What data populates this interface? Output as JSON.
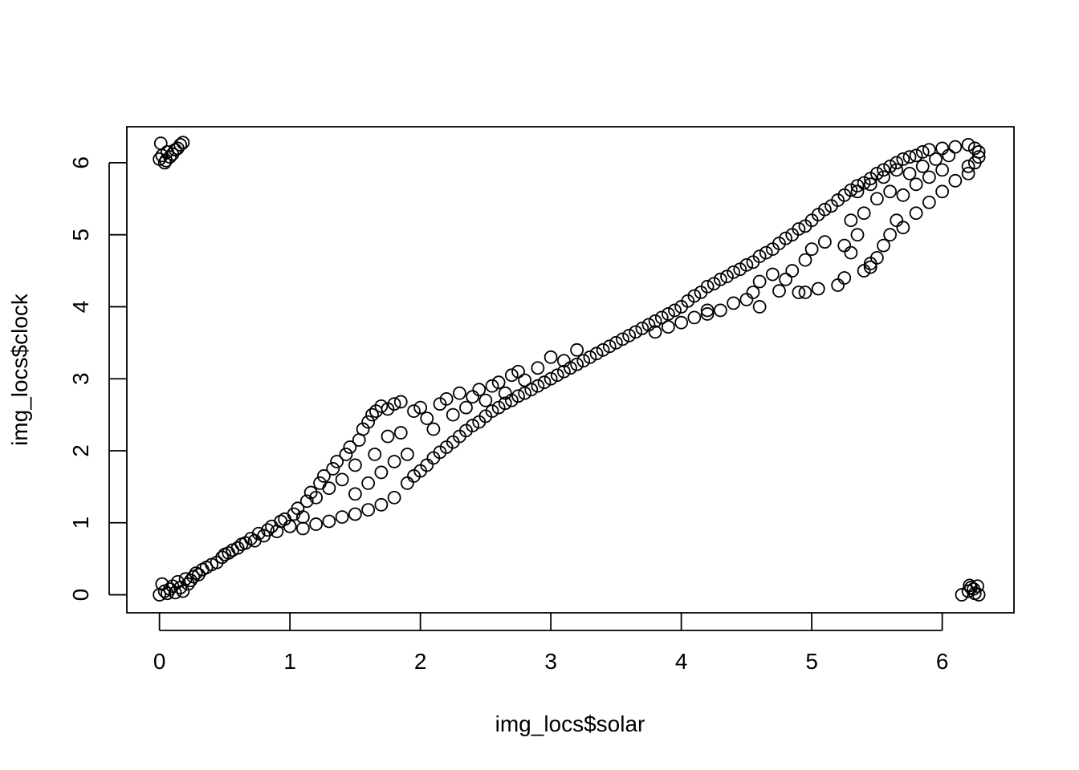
{
  "chart_data": {
    "type": "scatter",
    "title": "",
    "xlabel": "img_locs$solar",
    "ylabel": "img_locs$clock",
    "xlim": [
      -0.25,
      6.55
    ],
    "ylim": [
      -0.25,
      6.5
    ],
    "x_ticks": [
      0,
      1,
      2,
      3,
      4,
      5,
      6
    ],
    "y_ticks": [
      0,
      1,
      2,
      3,
      4,
      5,
      6
    ],
    "x_tick_labels": [
      "0",
      "1",
      "2",
      "3",
      "4",
      "5",
      "6"
    ],
    "y_tick_labels": [
      "0",
      "1",
      "2",
      "3",
      "4",
      "5",
      "6"
    ],
    "marker": "open-circle",
    "grid": false,
    "legend": "none",
    "series": [
      {
        "points": [
          [
            0.0,
            0.0
          ],
          [
            0.02,
            0.15
          ],
          [
            0.04,
            0.05
          ],
          [
            0.06,
            0.02
          ],
          [
            0.08,
            0.08
          ],
          [
            0.1,
            0.12
          ],
          [
            0.12,
            0.03
          ],
          [
            0.14,
            0.18
          ],
          [
            0.16,
            0.1
          ],
          [
            0.18,
            0.05
          ],
          [
            0.2,
            0.22
          ],
          [
            0.22,
            0.15
          ],
          [
            0.24,
            0.2
          ],
          [
            0.26,
            0.25
          ],
          [
            0.28,
            0.3
          ],
          [
            0.3,
            0.28
          ],
          [
            0.33,
            0.35
          ],
          [
            0.36,
            0.38
          ],
          [
            0.4,
            0.42
          ],
          [
            0.44,
            0.45
          ],
          [
            0.48,
            0.52
          ],
          [
            0.5,
            0.56
          ],
          [
            0.53,
            0.58
          ],
          [
            0.56,
            0.62
          ],
          [
            0.6,
            0.65
          ],
          [
            0.63,
            0.7
          ],
          [
            0.66,
            0.72
          ],
          [
            0.7,
            0.78
          ],
          [
            0.73,
            0.75
          ],
          [
            0.76,
            0.85
          ],
          [
            0.8,
            0.82
          ],
          [
            0.83,
            0.9
          ],
          [
            0.86,
            0.95
          ],
          [
            0.9,
            0.88
          ],
          [
            0.93,
            1.02
          ],
          [
            0.96,
            1.05
          ],
          [
            1.0,
            0.95
          ],
          [
            1.03,
            1.12
          ],
          [
            1.06,
            1.2
          ],
          [
            1.1,
            1.08
          ],
          [
            1.13,
            1.3
          ],
          [
            1.16,
            1.42
          ],
          [
            1.2,
            1.35
          ],
          [
            1.23,
            1.55
          ],
          [
            1.26,
            1.65
          ],
          [
            1.3,
            1.48
          ],
          [
            1.33,
            1.75
          ],
          [
            1.36,
            1.85
          ],
          [
            1.4,
            1.6
          ],
          [
            1.43,
            1.95
          ],
          [
            1.46,
            2.05
          ],
          [
            1.5,
            1.8
          ],
          [
            1.53,
            2.15
          ],
          [
            1.56,
            2.3
          ],
          [
            1.6,
            2.4
          ],
          [
            1.63,
            2.5
          ],
          [
            1.66,
            2.55
          ],
          [
            1.7,
            2.62
          ],
          [
            1.75,
            2.58
          ],
          [
            1.8,
            2.65
          ],
          [
            1.85,
            2.68
          ],
          [
            1.1,
            0.92
          ],
          [
            1.2,
            0.98
          ],
          [
            1.3,
            1.02
          ],
          [
            1.4,
            1.08
          ],
          [
            1.5,
            1.12
          ],
          [
            1.6,
            1.18
          ],
          [
            1.7,
            1.25
          ],
          [
            1.8,
            1.35
          ],
          [
            1.5,
            1.4
          ],
          [
            1.6,
            1.55
          ],
          [
            1.7,
            1.7
          ],
          [
            1.8,
            1.85
          ],
          [
            1.9,
            1.95
          ],
          [
            1.65,
            1.95
          ],
          [
            1.75,
            2.2
          ],
          [
            1.85,
            2.25
          ],
          [
            1.9,
            1.55
          ],
          [
            1.95,
            1.65
          ],
          [
            2.0,
            1.72
          ],
          [
            2.05,
            1.8
          ],
          [
            2.1,
            1.9
          ],
          [
            2.15,
            1.98
          ],
          [
            2.2,
            2.05
          ],
          [
            2.25,
            2.12
          ],
          [
            2.3,
            2.2
          ],
          [
            2.35,
            2.28
          ],
          [
            2.4,
            2.35
          ],
          [
            2.45,
            2.4
          ],
          [
            2.5,
            2.48
          ],
          [
            2.55,
            2.55
          ],
          [
            2.6,
            2.6
          ],
          [
            2.65,
            2.66
          ],
          [
            2.7,
            2.7
          ],
          [
            2.75,
            2.76
          ],
          [
            2.8,
            2.8
          ],
          [
            2.85,
            2.85
          ],
          [
            2.9,
            2.9
          ],
          [
            2.95,
            2.95
          ],
          [
            3.0,
            3.0
          ],
          [
            1.95,
            2.55
          ],
          [
            2.0,
            2.6
          ],
          [
            2.05,
            2.45
          ],
          [
            2.1,
            2.3
          ],
          [
            2.15,
            2.65
          ],
          [
            2.2,
            2.72
          ],
          [
            2.25,
            2.5
          ],
          [
            2.3,
            2.8
          ],
          [
            2.35,
            2.6
          ],
          [
            2.4,
            2.75
          ],
          [
            2.45,
            2.85
          ],
          [
            2.5,
            2.7
          ],
          [
            2.55,
            2.9
          ],
          [
            2.6,
            2.95
          ],
          [
            2.65,
            2.8
          ],
          [
            2.7,
            3.05
          ],
          [
            2.75,
            3.1
          ],
          [
            2.8,
            2.98
          ],
          [
            2.9,
            3.15
          ],
          [
            3.0,
            3.3
          ],
          [
            3.1,
            3.25
          ],
          [
            3.2,
            3.4
          ],
          [
            3.05,
            3.05
          ],
          [
            3.1,
            3.1
          ],
          [
            3.15,
            3.15
          ],
          [
            3.2,
            3.2
          ],
          [
            3.25,
            3.25
          ],
          [
            3.3,
            3.3
          ],
          [
            3.35,
            3.35
          ],
          [
            3.4,
            3.4
          ],
          [
            3.45,
            3.45
          ],
          [
            3.5,
            3.5
          ],
          [
            3.55,
            3.55
          ],
          [
            3.6,
            3.6
          ],
          [
            3.65,
            3.65
          ],
          [
            3.7,
            3.7
          ],
          [
            3.75,
            3.75
          ],
          [
            3.8,
            3.8
          ],
          [
            3.85,
            3.85
          ],
          [
            3.9,
            3.9
          ],
          [
            3.95,
            3.95
          ],
          [
            4.0,
            4.0
          ],
          [
            3.8,
            3.65
          ],
          [
            3.9,
            3.72
          ],
          [
            4.0,
            3.78
          ],
          [
            4.1,
            3.85
          ],
          [
            4.2,
            3.9
          ],
          [
            4.3,
            3.95
          ],
          [
            4.05,
            4.08
          ],
          [
            4.1,
            4.15
          ],
          [
            4.15,
            4.2
          ],
          [
            4.2,
            4.28
          ],
          [
            4.25,
            4.32
          ],
          [
            4.3,
            4.38
          ],
          [
            4.35,
            4.42
          ],
          [
            4.4,
            4.48
          ],
          [
            4.45,
            4.52
          ],
          [
            4.5,
            4.58
          ],
          [
            4.55,
            4.62
          ],
          [
            4.6,
            4.7
          ],
          [
            4.65,
            4.75
          ],
          [
            4.7,
            4.8
          ],
          [
            4.75,
            4.88
          ],
          [
            4.8,
            4.95
          ],
          [
            4.85,
            5.0
          ],
          [
            4.9,
            5.08
          ],
          [
            4.95,
            5.12
          ],
          [
            5.0,
            5.2
          ],
          [
            5.05,
            5.28
          ],
          [
            5.1,
            5.35
          ],
          [
            5.15,
            5.4
          ],
          [
            5.2,
            5.48
          ],
          [
            5.25,
            5.55
          ],
          [
            5.3,
            5.62
          ],
          [
            5.35,
            5.68
          ],
          [
            5.4,
            5.72
          ],
          [
            5.45,
            5.78
          ],
          [
            5.5,
            5.85
          ],
          [
            5.55,
            5.9
          ],
          [
            5.6,
            5.95
          ],
          [
            5.65,
            6.0
          ],
          [
            5.7,
            6.05
          ],
          [
            5.75,
            6.08
          ],
          [
            5.8,
            6.1
          ],
          [
            5.85,
            6.15
          ],
          [
            5.9,
            6.18
          ],
          [
            6.0,
            6.2
          ],
          [
            6.1,
            6.22
          ],
          [
            6.2,
            6.25
          ],
          [
            6.25,
            6.2
          ],
          [
            6.28,
            6.15
          ],
          [
            6.28,
            6.08
          ],
          [
            6.25,
            6.0
          ],
          [
            6.2,
            5.95
          ],
          [
            4.4,
            4.05
          ],
          [
            4.5,
            4.1
          ],
          [
            4.55,
            4.2
          ],
          [
            4.6,
            4.35
          ],
          [
            4.7,
            4.45
          ],
          [
            4.75,
            4.22
          ],
          [
            4.8,
            4.38
          ],
          [
            4.85,
            4.5
          ],
          [
            4.9,
            4.2
          ],
          [
            4.95,
            4.65
          ],
          [
            5.0,
            4.8
          ],
          [
            5.05,
            4.25
          ],
          [
            5.1,
            4.9
          ],
          [
            5.2,
            4.3
          ],
          [
            5.25,
            4.85
          ],
          [
            5.3,
            4.75
          ],
          [
            5.35,
            5.0
          ],
          [
            5.4,
            4.5
          ],
          [
            5.45,
            4.6
          ],
          [
            5.5,
            4.68
          ],
          [
            5.55,
            4.85
          ],
          [
            5.6,
            5.0
          ],
          [
            5.65,
            5.2
          ],
          [
            5.7,
            5.1
          ],
          [
            5.8,
            5.3
          ],
          [
            5.9,
            5.45
          ],
          [
            6.0,
            5.6
          ],
          [
            6.1,
            5.75
          ],
          [
            6.2,
            5.85
          ],
          [
            5.3,
            5.2
          ],
          [
            5.4,
            5.3
          ],
          [
            5.5,
            5.5
          ],
          [
            5.6,
            5.6
          ],
          [
            5.7,
            5.55
          ],
          [
            5.8,
            5.7
          ],
          [
            5.9,
            5.8
          ],
          [
            6.0,
            5.9
          ],
          [
            5.35,
            5.6
          ],
          [
            5.45,
            5.7
          ],
          [
            5.55,
            5.8
          ],
          [
            5.65,
            5.9
          ],
          [
            5.75,
            5.85
          ],
          [
            5.85,
            5.95
          ],
          [
            5.95,
            6.05
          ],
          [
            6.05,
            6.1
          ],
          [
            4.6,
            4.0
          ],
          [
            4.2,
            3.95
          ],
          [
            4.95,
            4.2
          ],
          [
            5.25,
            4.4
          ],
          [
            5.45,
            4.55
          ],
          [
            0.0,
            6.05
          ],
          [
            0.02,
            6.1
          ],
          [
            0.04,
            6.0
          ],
          [
            0.06,
            6.15
          ],
          [
            0.08,
            6.08
          ],
          [
            0.1,
            6.12
          ],
          [
            0.12,
            6.18
          ],
          [
            0.14,
            6.2
          ],
          [
            0.16,
            6.25
          ],
          [
            0.18,
            6.28
          ],
          [
            0.01,
            6.27
          ],
          [
            0.05,
            6.03
          ],
          [
            6.15,
            0.0
          ],
          [
            6.2,
            0.05
          ],
          [
            6.22,
            0.1
          ],
          [
            6.25,
            0.02
          ],
          [
            6.27,
            0.12
          ],
          [
            6.28,
            0.0
          ],
          [
            6.24,
            0.08
          ],
          [
            6.21,
            0.13
          ]
        ]
      }
    ]
  }
}
